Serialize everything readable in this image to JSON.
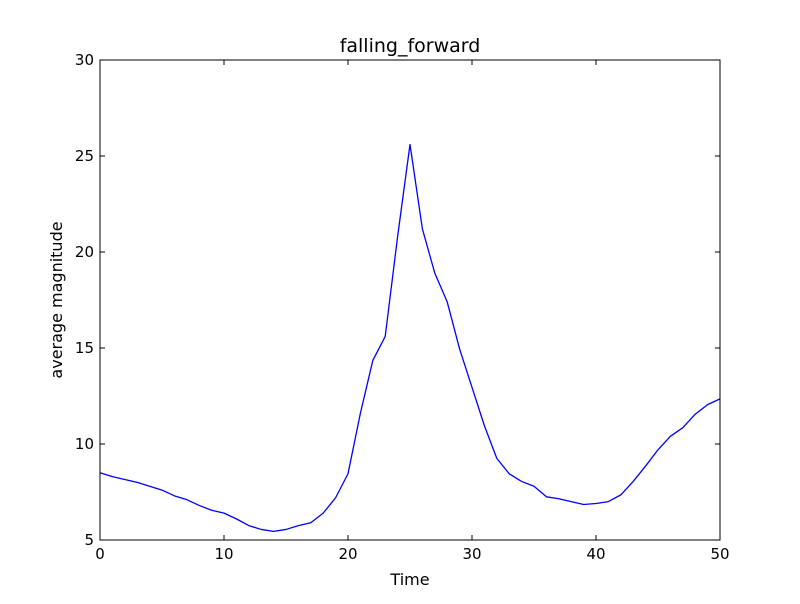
{
  "chart_data": {
    "type": "line",
    "title": "falling_forward",
    "xlabel": "Time",
    "ylabel": "average magnitude",
    "xlim": [
      0,
      50
    ],
    "ylim": [
      5,
      30
    ],
    "xticks": [
      0,
      10,
      20,
      30,
      40,
      50
    ],
    "yticks": [
      5,
      10,
      15,
      20,
      25,
      30
    ],
    "grid": false,
    "series": [
      {
        "color": "#0000ff",
        "x": [
          0,
          1,
          2,
          3,
          4,
          5,
          6,
          7,
          8,
          9,
          10,
          11,
          12,
          13,
          14,
          15,
          16,
          17,
          18,
          19,
          20,
          21,
          22,
          23,
          24,
          25,
          26,
          27,
          28,
          29,
          30,
          31,
          32,
          33,
          34,
          35,
          36,
          37,
          38,
          39,
          40,
          41,
          42,
          43,
          44,
          45,
          46,
          47,
          48,
          49,
          50
        ],
        "y": [
          8.5,
          8.3,
          8.15,
          8.0,
          7.8,
          7.6,
          7.3,
          7.1,
          6.8,
          6.55,
          6.4,
          6.1,
          5.75,
          5.55,
          5.45,
          5.55,
          5.75,
          5.9,
          6.4,
          7.2,
          8.45,
          11.6,
          14.35,
          15.6,
          20.8,
          25.6,
          21.2,
          18.9,
          17.4,
          14.95,
          12.95,
          10.95,
          9.25,
          8.45,
          8.05,
          7.8,
          7.25,
          7.15,
          7.0,
          6.85,
          6.9,
          7.0,
          7.35,
          8.05,
          8.85,
          9.7,
          10.4,
          10.85,
          11.55,
          12.05,
          12.35
        ]
      }
    ]
  }
}
